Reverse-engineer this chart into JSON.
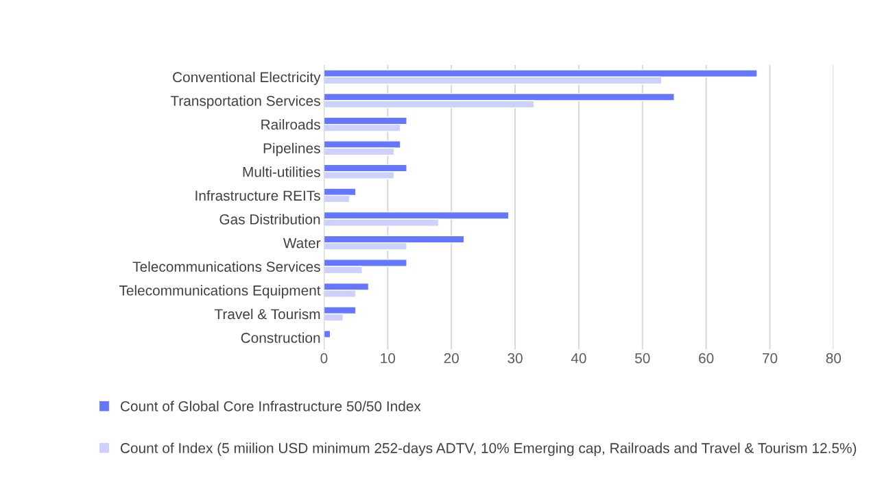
{
  "chart_data": {
    "type": "bar",
    "orientation": "horizontal",
    "categories": [
      "Conventional Electricity",
      "Transportation Services",
      "Railroads",
      "Pipelines",
      "Multi-utilities",
      "Infrastructure REITs",
      "Gas Distribution",
      "Water",
      "Telecommunications Services",
      "Telecommunications Equipment",
      "Travel & Tourism",
      "Construction"
    ],
    "series": [
      {
        "name": "Count of Global Core Infrastructure 50/50 Index",
        "color": "#6677ff",
        "values": [
          68,
          55,
          13,
          12,
          13,
          5,
          29,
          22,
          13,
          7,
          5,
          1
        ]
      },
      {
        "name": "Count of Index (5 miilion USD minimum 252-days ADTV, 10% Emerging cap, Railroads and Travel & Tourism 12.5%)",
        "color": "#ccd1ff",
        "values": [
          53,
          33,
          12,
          11,
          11,
          4,
          18,
          13,
          6,
          5,
          3,
          null
        ]
      }
    ],
    "xlim": [
      0,
      80
    ],
    "xticks": [
      0,
      10,
      20,
      30,
      40,
      50,
      60,
      70,
      80
    ],
    "grid": "x",
    "legend": "bottom"
  }
}
